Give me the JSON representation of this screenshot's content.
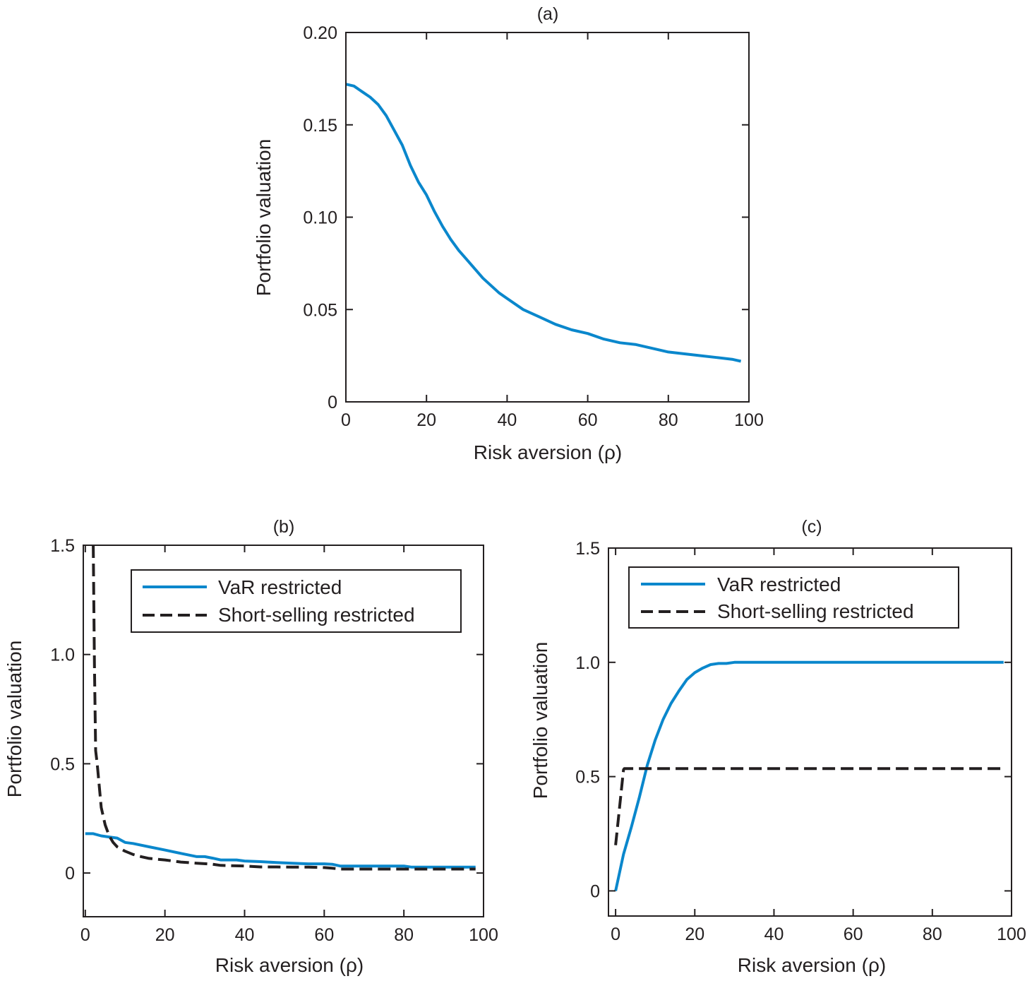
{
  "colors": {
    "blue": "#0a87cc",
    "black": "#231f20"
  },
  "chart_data": [
    {
      "type": "line",
      "title": "(a)",
      "xlabel": "Risk aversion (ρ)",
      "ylabel": "Portfolio valuation",
      "xlim": [
        0,
        100
      ],
      "ylim": [
        0,
        0.2
      ],
      "xticks": [
        0,
        20,
        40,
        60,
        80,
        100
      ],
      "xtick_labels": [
        "0",
        "20",
        "40",
        "60",
        "80",
        "100"
      ],
      "yticks": [
        0,
        0.05,
        0.1,
        0.15,
        0.2
      ],
      "ytick_labels": [
        "0",
        "0.05",
        "0.10",
        "0.15",
        "0.20"
      ],
      "grid": false,
      "legend": null,
      "series": [
        {
          "name": "Portfolio valuation",
          "style": "solid",
          "color": "#0a87cc",
          "x": [
            0,
            2,
            4,
            6,
            8,
            10,
            12,
            14,
            16,
            18,
            20,
            22,
            24,
            26,
            28,
            30,
            32,
            34,
            36,
            38,
            40,
            44,
            48,
            52,
            56,
            60,
            64,
            68,
            72,
            76,
            80,
            84,
            88,
            92,
            96,
            98
          ],
          "y": [
            0.172,
            0.171,
            0.168,
            0.165,
            0.161,
            0.155,
            0.147,
            0.139,
            0.128,
            0.119,
            0.112,
            0.103,
            0.095,
            0.088,
            0.082,
            0.077,
            0.072,
            0.067,
            0.063,
            0.059,
            0.056,
            0.05,
            0.046,
            0.042,
            0.039,
            0.037,
            0.034,
            0.032,
            0.031,
            0.029,
            0.027,
            0.026,
            0.025,
            0.024,
            0.023,
            0.022
          ]
        }
      ]
    },
    {
      "type": "line",
      "title": "(b)",
      "xlabel": "Risk aversion (ρ)",
      "ylabel": "Portfolio valuation",
      "xlim": [
        -0.5,
        100
      ],
      "ylim": [
        -0.2,
        1.5
      ],
      "xticks": [
        0,
        20,
        40,
        60,
        80,
        100
      ],
      "xtick_labels": [
        "0",
        "20",
        "40",
        "60",
        "80",
        "100"
      ],
      "yticks": [
        0,
        0.5,
        1.0,
        1.5
      ],
      "ytick_labels": [
        "0",
        "0.5",
        "1.0",
        "1.5"
      ],
      "grid": false,
      "legend": {
        "placement": "top-right",
        "entries": [
          "VaR restricted",
          "Short-selling restricted"
        ]
      },
      "series": [
        {
          "name": "VaR restricted",
          "style": "solid",
          "color": "#0a87cc",
          "x": [
            0,
            2,
            4,
            6,
            8,
            10,
            12,
            16,
            20,
            24,
            28,
            30,
            32,
            34,
            36,
            38,
            40,
            44,
            48,
            52,
            56,
            60,
            62,
            64,
            68,
            72,
            76,
            80,
            82,
            86,
            90,
            94,
            98
          ],
          "y": [
            0.18,
            0.18,
            0.17,
            0.165,
            0.16,
            0.14,
            0.135,
            0.12,
            0.105,
            0.09,
            0.075,
            0.075,
            0.068,
            0.06,
            0.06,
            0.06,
            0.055,
            0.052,
            0.048,
            0.045,
            0.042,
            0.042,
            0.04,
            0.032,
            0.032,
            0.032,
            0.032,
            0.032,
            0.027,
            0.027,
            0.027,
            0.027,
            0.027
          ]
        },
        {
          "name": "Short-selling restricted",
          "style": "dashed",
          "color": "#231f20",
          "x": [
            2,
            2.3,
            2.6,
            3,
            4,
            5,
            6,
            7,
            8,
            10,
            12,
            14,
            16,
            18,
            20,
            24,
            28,
            32,
            34,
            40,
            44,
            48,
            52,
            56,
            60,
            62,
            64,
            70,
            80,
            90,
            98
          ],
          "y": [
            1.5,
            0.95,
            0.56,
            0.5,
            0.3,
            0.22,
            0.17,
            0.14,
            0.12,
            0.1,
            0.085,
            0.075,
            0.067,
            0.063,
            0.06,
            0.05,
            0.045,
            0.04,
            0.035,
            0.032,
            0.028,
            0.028,
            0.027,
            0.027,
            0.025,
            0.022,
            0.018,
            0.018,
            0.018,
            0.018,
            0.018
          ]
        }
      ]
    },
    {
      "type": "line",
      "title": "(c)",
      "xlabel": "Risk aversion (ρ)",
      "ylabel": "Portfolio valuation",
      "xlim": [
        -1.8,
        100
      ],
      "ylim": [
        -0.11,
        1.5
      ],
      "xticks": [
        0,
        20,
        40,
        60,
        80,
        100
      ],
      "xtick_labels": [
        "0",
        "20",
        "40",
        "60",
        "80",
        "100"
      ],
      "yticks": [
        0,
        0.5,
        1.0,
        1.5
      ],
      "ytick_labels": [
        "0",
        "0.5",
        "1.0",
        "1.5"
      ],
      "grid": false,
      "legend": {
        "placement": "top-right",
        "entries": [
          "VaR restricted",
          "Short-selling restricted"
        ]
      },
      "series": [
        {
          "name": "VaR restricted",
          "style": "solid",
          "color": "#0a87cc",
          "x": [
            0,
            1,
            2,
            4,
            6,
            8,
            10,
            12,
            14,
            16,
            18,
            20,
            22,
            24,
            26,
            28,
            30,
            40,
            60,
            80,
            98
          ],
          "y": [
            0,
            0.08,
            0.16,
            0.28,
            0.41,
            0.55,
            0.66,
            0.75,
            0.82,
            0.875,
            0.925,
            0.955,
            0.975,
            0.99,
            0.995,
            0.995,
            1.0,
            1.0,
            1.0,
            1.0,
            1.0
          ]
        },
        {
          "name": "Short-selling restricted",
          "style": "dashed",
          "color": "#231f20",
          "x": [
            0,
            2,
            2.2,
            10,
            40,
            70,
            98
          ],
          "y": [
            0.2,
            0.53,
            0.535,
            0.535,
            0.535,
            0.535,
            0.535
          ]
        }
      ]
    }
  ]
}
